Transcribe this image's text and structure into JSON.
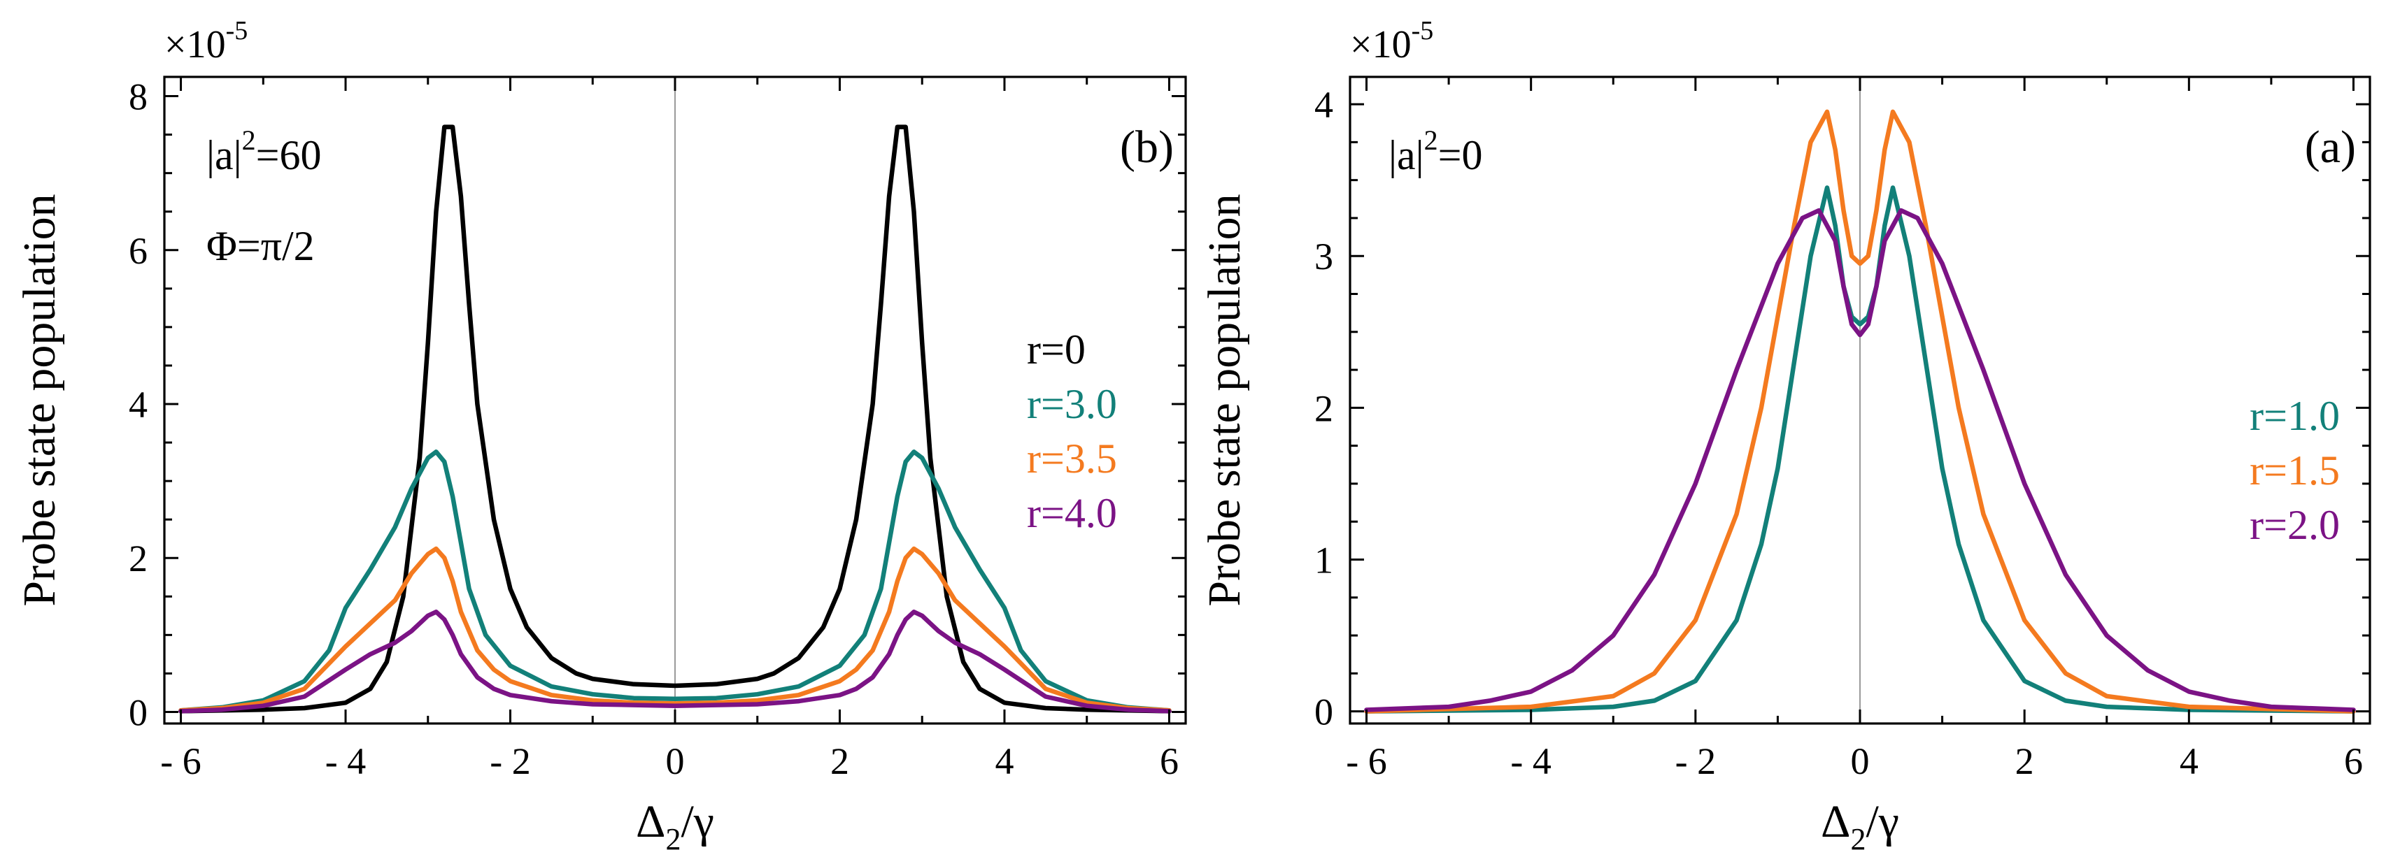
{
  "chart_data": [
    {
      "type": "line",
      "panel_label": "(b)",
      "title": "",
      "xlabel": "Δ2/γ",
      "xlabel_main": "Δ",
      "xlabel_sub": "2",
      "xlabel_rest": "/γ",
      "ylabel": "Probe state population",
      "y_multiplier_text": "×10",
      "y_multiplier_exp": "-5",
      "xlim": [
        -6.2,
        6.2
      ],
      "ylim": [
        -0.15,
        8.25
      ],
      "xticks": [
        -6,
        -4,
        -2,
        0,
        2,
        4,
        6
      ],
      "xtick_labels": [
        "- 6",
        "- 4",
        "- 2",
        "0",
        "2",
        "4",
        "6"
      ],
      "yticks": [
        0,
        2,
        4,
        6,
        8
      ],
      "ytick_labels": [
        "0",
        "2",
        "4",
        "6",
        "8"
      ],
      "annotations": [
        "|a|2=60",
        "Φ=π/2"
      ],
      "annotation_parts": {
        "a_left": "|a|",
        "a_sup": "2",
        "a_right": "=60",
        "phi": "Φ=π/2"
      },
      "legend_position": "right",
      "series": [
        {
          "name": "r=0",
          "color": "#000000",
          "x": [
            -6,
            -5,
            -4.5,
            -4,
            -3.7,
            -3.5,
            -3.3,
            -3.1,
            -3.0,
            -2.9,
            -2.8,
            -2.7,
            -2.6,
            -2.5,
            -2.4,
            -2.2,
            -2.0,
            -1.8,
            -1.5,
            -1.2,
            -1.0,
            -0.5,
            0,
            0.5,
            1.0,
            1.2,
            1.5,
            1.8,
            2.0,
            2.2,
            2.4,
            2.5,
            2.6,
            2.7,
            2.8,
            2.9,
            3.0,
            3.1,
            3.3,
            3.5,
            3.7,
            4,
            4.5,
            5,
            6
          ],
          "values": [
            0.01,
            0.03,
            0.05,
            0.12,
            0.3,
            0.65,
            1.5,
            3.3,
            4.8,
            6.5,
            7.6,
            7.6,
            6.7,
            5.3,
            4.0,
            2.5,
            1.6,
            1.1,
            0.7,
            0.5,
            0.43,
            0.36,
            0.34,
            0.36,
            0.43,
            0.5,
            0.7,
            1.1,
            1.6,
            2.5,
            4.0,
            5.3,
            6.7,
            7.6,
            7.6,
            6.5,
            4.8,
            3.3,
            1.5,
            0.65,
            0.3,
            0.12,
            0.05,
            0.03,
            0.01
          ]
        },
        {
          "name": "r=3.0",
          "color": "#128079",
          "x": [
            -6,
            -5.5,
            -5,
            -4.5,
            -4.2,
            -4.0,
            -3.7,
            -3.4,
            -3.2,
            -3.0,
            -2.9,
            -2.8,
            -2.7,
            -2.6,
            -2.5,
            -2.3,
            -2.0,
            -1.5,
            -1.0,
            -0.5,
            0,
            0.5,
            1.0,
            1.5,
            2.0,
            2.3,
            2.5,
            2.6,
            2.7,
            2.8,
            2.9,
            3.0,
            3.2,
            3.4,
            3.7,
            4.0,
            4.2,
            4.5,
            5,
            5.5,
            6
          ],
          "values": [
            0.02,
            0.06,
            0.15,
            0.4,
            0.8,
            1.35,
            1.85,
            2.4,
            2.9,
            3.3,
            3.38,
            3.25,
            2.8,
            2.2,
            1.6,
            1.0,
            0.6,
            0.33,
            0.23,
            0.18,
            0.17,
            0.18,
            0.23,
            0.33,
            0.6,
            1.0,
            1.6,
            2.2,
            2.8,
            3.25,
            3.38,
            3.3,
            2.9,
            2.4,
            1.85,
            1.35,
            0.8,
            0.4,
            0.15,
            0.06,
            0.02
          ]
        },
        {
          "name": "r=3.5",
          "color": "#F47A1F",
          "x": [
            -6,
            -5.5,
            -5,
            -4.5,
            -4.0,
            -3.7,
            -3.4,
            -3.2,
            -3.0,
            -2.9,
            -2.8,
            -2.7,
            -2.6,
            -2.4,
            -2.2,
            -2.0,
            -1.5,
            -1.0,
            -0.5,
            0,
            0.5,
            1.0,
            1.5,
            2.0,
            2.2,
            2.4,
            2.6,
            2.7,
            2.8,
            2.9,
            3.0,
            3.2,
            3.4,
            3.7,
            4.0,
            4.5,
            5,
            5.5,
            6
          ],
          "values": [
            0.02,
            0.05,
            0.12,
            0.3,
            0.85,
            1.15,
            1.45,
            1.8,
            2.05,
            2.12,
            2.0,
            1.7,
            1.3,
            0.8,
            0.55,
            0.4,
            0.22,
            0.15,
            0.12,
            0.11,
            0.12,
            0.15,
            0.22,
            0.4,
            0.55,
            0.8,
            1.3,
            1.7,
            2.0,
            2.12,
            2.05,
            1.8,
            1.45,
            1.15,
            0.85,
            0.3,
            0.12,
            0.05,
            0.02
          ]
        },
        {
          "name": "r=4.0",
          "color": "#7B1385",
          "x": [
            -6,
            -5.5,
            -5,
            -4.5,
            -4.0,
            -3.7,
            -3.4,
            -3.2,
            -3.0,
            -2.9,
            -2.8,
            -2.7,
            -2.6,
            -2.4,
            -2.2,
            -2.0,
            -1.5,
            -1.0,
            -0.5,
            0,
            0.5,
            1.0,
            1.5,
            2.0,
            2.2,
            2.4,
            2.6,
            2.7,
            2.8,
            2.9,
            3.0,
            3.2,
            3.4,
            3.7,
            4.0,
            4.5,
            5,
            5.5,
            6
          ],
          "values": [
            0.01,
            0.03,
            0.08,
            0.2,
            0.55,
            0.75,
            0.9,
            1.05,
            1.25,
            1.3,
            1.2,
            1.0,
            0.75,
            0.45,
            0.3,
            0.22,
            0.14,
            0.1,
            0.09,
            0.08,
            0.09,
            0.1,
            0.14,
            0.22,
            0.3,
            0.45,
            0.75,
            1.0,
            1.2,
            1.3,
            1.25,
            1.05,
            0.9,
            0.75,
            0.55,
            0.2,
            0.08,
            0.03,
            0.01
          ]
        }
      ]
    },
    {
      "type": "line",
      "panel_label": "(a)",
      "title": "",
      "xlabel": "Δ2/γ",
      "xlabel_main": "Δ",
      "xlabel_sub": "2",
      "xlabel_rest": "/γ",
      "ylabel": "Probe state population",
      "y_multiplier_text": "×10",
      "y_multiplier_exp": "-5",
      "xlim": [
        -6.2,
        6.2
      ],
      "ylim": [
        -0.08,
        4.18
      ],
      "xticks": [
        -6,
        -4,
        -2,
        0,
        2,
        4,
        6
      ],
      "xtick_labels": [
        "- 6",
        "- 4",
        "- 2",
        "0",
        "2",
        "4",
        "6"
      ],
      "yticks": [
        0,
        1,
        2,
        3,
        4
      ],
      "ytick_labels": [
        "0",
        "1",
        "2",
        "3",
        "4"
      ],
      "annotations": [
        "|a|2=0"
      ],
      "annotation_parts": {
        "a_left": "|a|",
        "a_sup": "2",
        "a_right": "=0"
      },
      "legend_position": "right",
      "series": [
        {
          "name": "r=1.0",
          "color": "#128079",
          "x": [
            -6,
            -4,
            -3,
            -2.5,
            -2,
            -1.5,
            -1.2,
            -1.0,
            -0.8,
            -0.6,
            -0.4,
            -0.3,
            -0.2,
            -0.1,
            0,
            0.1,
            0.2,
            0.3,
            0.4,
            0.6,
            0.8,
            1.0,
            1.2,
            1.5,
            2,
            2.5,
            3,
            4,
            6
          ],
          "values": [
            0.0,
            0.01,
            0.03,
            0.07,
            0.2,
            0.6,
            1.1,
            1.6,
            2.3,
            3.0,
            3.45,
            3.2,
            2.8,
            2.6,
            2.55,
            2.6,
            2.8,
            3.2,
            3.45,
            3.0,
            2.3,
            1.6,
            1.1,
            0.6,
            0.2,
            0.07,
            0.03,
            0.01,
            0.0
          ]
        },
        {
          "name": "r=1.5",
          "color": "#F47A1F",
          "x": [
            -6,
            -4,
            -3,
            -2.5,
            -2,
            -1.5,
            -1.2,
            -1.0,
            -0.8,
            -0.6,
            -0.4,
            -0.3,
            -0.2,
            -0.1,
            0,
            0.1,
            0.2,
            0.3,
            0.4,
            0.6,
            0.8,
            1.0,
            1.2,
            1.5,
            2,
            2.5,
            3,
            4,
            6
          ],
          "values": [
            0.0,
            0.03,
            0.1,
            0.25,
            0.6,
            1.3,
            2.0,
            2.6,
            3.2,
            3.75,
            3.95,
            3.7,
            3.3,
            3.0,
            2.95,
            3.0,
            3.3,
            3.7,
            3.95,
            3.75,
            3.2,
            2.6,
            2.0,
            1.3,
            0.6,
            0.25,
            0.1,
            0.03,
            0.0
          ]
        },
        {
          "name": "r=2.0",
          "color": "#7B1385",
          "x": [
            -6,
            -5,
            -4.5,
            -4,
            -3.5,
            -3,
            -2.5,
            -2,
            -1.5,
            -1.0,
            -0.7,
            -0.5,
            -0.3,
            -0.2,
            -0.1,
            0,
            0.1,
            0.2,
            0.3,
            0.5,
            0.7,
            1.0,
            1.5,
            2,
            2.5,
            3,
            3.5,
            4,
            4.5,
            5,
            6
          ],
          "values": [
            0.01,
            0.03,
            0.07,
            0.13,
            0.27,
            0.5,
            0.9,
            1.5,
            2.25,
            2.95,
            3.25,
            3.3,
            3.1,
            2.8,
            2.55,
            2.48,
            2.55,
            2.8,
            3.1,
            3.3,
            3.25,
            2.95,
            2.25,
            1.5,
            0.9,
            0.5,
            0.27,
            0.13,
            0.07,
            0.03,
            0.01
          ]
        }
      ]
    }
  ]
}
